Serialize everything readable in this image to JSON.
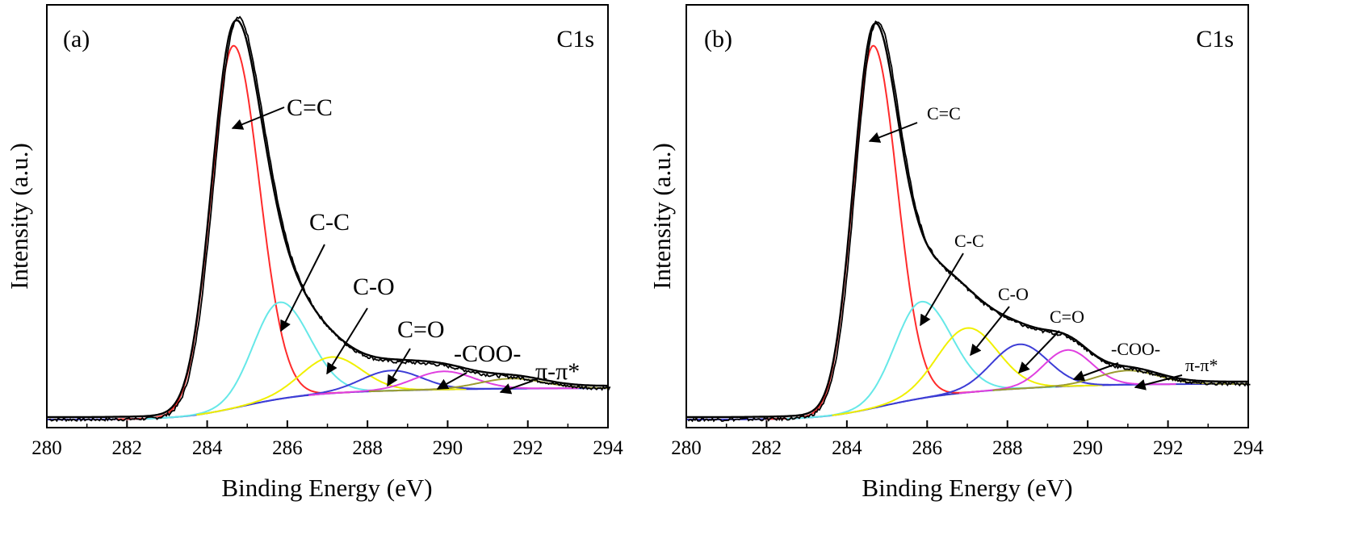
{
  "chart_data": [
    {
      "type": "line",
      "panel_label": "(a)",
      "region_label": "C1s",
      "xlabel": "Binding Energy (eV)",
      "ylabel": "Intensity (a.u.)",
      "xlim": [
        280,
        294
      ],
      "xticks": [
        280,
        282,
        284,
        286,
        288,
        290,
        292,
        294
      ],
      "y_ticks_shown": false,
      "ylim": [
        0,
        1.05
      ],
      "grid": false,
      "legend": "none",
      "background": 0.02,
      "background_rise": 0.07,
      "envelope_offset": 0.006,
      "raw_noise": 0.008,
      "series": [
        {
          "label": "C=C",
          "color": "#ff2b2b",
          "center": 284.65,
          "height": 0.9,
          "width_low": 0.55,
          "width_high": 0.65
        },
        {
          "label": "C-C",
          "color": "#66e8e8",
          "center": 285.8,
          "height": 0.24,
          "width_low": 0.65,
          "width_high": 0.75
        },
        {
          "label": "C-O",
          "color": "#f0f000",
          "center": 287.1,
          "height": 0.09,
          "width_low": 0.75,
          "width_high": 0.75
        },
        {
          "label": "C=O",
          "color": "#3d3dd6",
          "center": 288.6,
          "height": 0.05,
          "width_low": 0.75,
          "width_high": 0.75
        },
        {
          "label": "-COO-",
          "color": "#e040e0",
          "center": 289.9,
          "height": 0.045,
          "width_low": 0.75,
          "width_high": 0.75
        },
        {
          "label": "π-π*",
          "color": "#9b9b30",
          "center": 291.6,
          "height": 0.025,
          "width_low": 0.8,
          "width_high": 0.8
        }
      ],
      "annotations": [
        {
          "text": "C=C",
          "tail_x": 284.9,
          "head_x": 285.5
        },
        {
          "text": "C-C",
          "tail_x": 285.9,
          "head_x": 286.7
        },
        {
          "text": "C-O",
          "tail_x": 287.2,
          "head_x": 288.0
        },
        {
          "text": "C=O",
          "tail_x": 288.5,
          "head_x": 288.7
        },
        {
          "text": "-COO-",
          "tail_x": 289.9,
          "head_x": 290.5
        },
        {
          "text": "π-π*",
          "tail_x": 291.5,
          "head_x": 291.9
        }
      ]
    },
    {
      "type": "line",
      "panel_label": "(b)",
      "region_label": "C1s",
      "xlabel": "Binding Energy (eV)",
      "ylabel": "Intensity (a.u.)",
      "xlim": [
        280,
        294
      ],
      "xticks": [
        280,
        282,
        284,
        286,
        288,
        290,
        292,
        294
      ],
      "y_ticks_shown": false,
      "ylim": [
        0,
        1.05
      ],
      "grid": false,
      "legend": "none",
      "background": 0.02,
      "background_rise": 0.07,
      "envelope_offset": 0.006,
      "raw_noise": 0.008,
      "series": [
        {
          "label": "C=C",
          "color": "#ff2b2b",
          "center": 284.65,
          "height": 0.9,
          "width_low": 0.5,
          "width_high": 0.6
        },
        {
          "label": "C-C",
          "color": "#66e8e8",
          "center": 285.85,
          "height": 0.24,
          "width_low": 0.65,
          "width_high": 0.75
        },
        {
          "label": "C-O",
          "color": "#f0f000",
          "center": 287.0,
          "height": 0.16,
          "width_low": 0.75,
          "width_high": 0.75
        },
        {
          "label": "C=O",
          "color": "#3d3dd6",
          "center": 288.3,
          "height": 0.11,
          "width_low": 0.7,
          "width_high": 0.7
        },
        {
          "label": "-COO-",
          "color": "#e040e0",
          "center": 289.5,
          "height": 0.09,
          "width_low": 0.6,
          "width_high": 0.6
        },
        {
          "label": "π-π*",
          "color": "#9b9b30",
          "center": 291.0,
          "height": 0.035,
          "width_low": 0.75,
          "width_high": 0.75
        }
      ],
      "annotations": [
        {
          "text": "C=C",
          "tail_x": 285.0,
          "head_x": 286.3
        },
        {
          "text": "C-C",
          "tail_x": 285.8,
          "head_x": 286.5
        },
        {
          "text": "C-O",
          "tail_x": 287.0,
          "head_x": 287.7
        },
        {
          "text": "C=O",
          "tail_x": 288.3,
          "head_x": 288.9
        },
        {
          "text": "-COO-",
          "tail_x": 289.6,
          "head_x": 290.2
        },
        {
          "text": "π-π*",
          "tail_x": 291.2,
          "head_x": 291.6
        }
      ]
    }
  ]
}
